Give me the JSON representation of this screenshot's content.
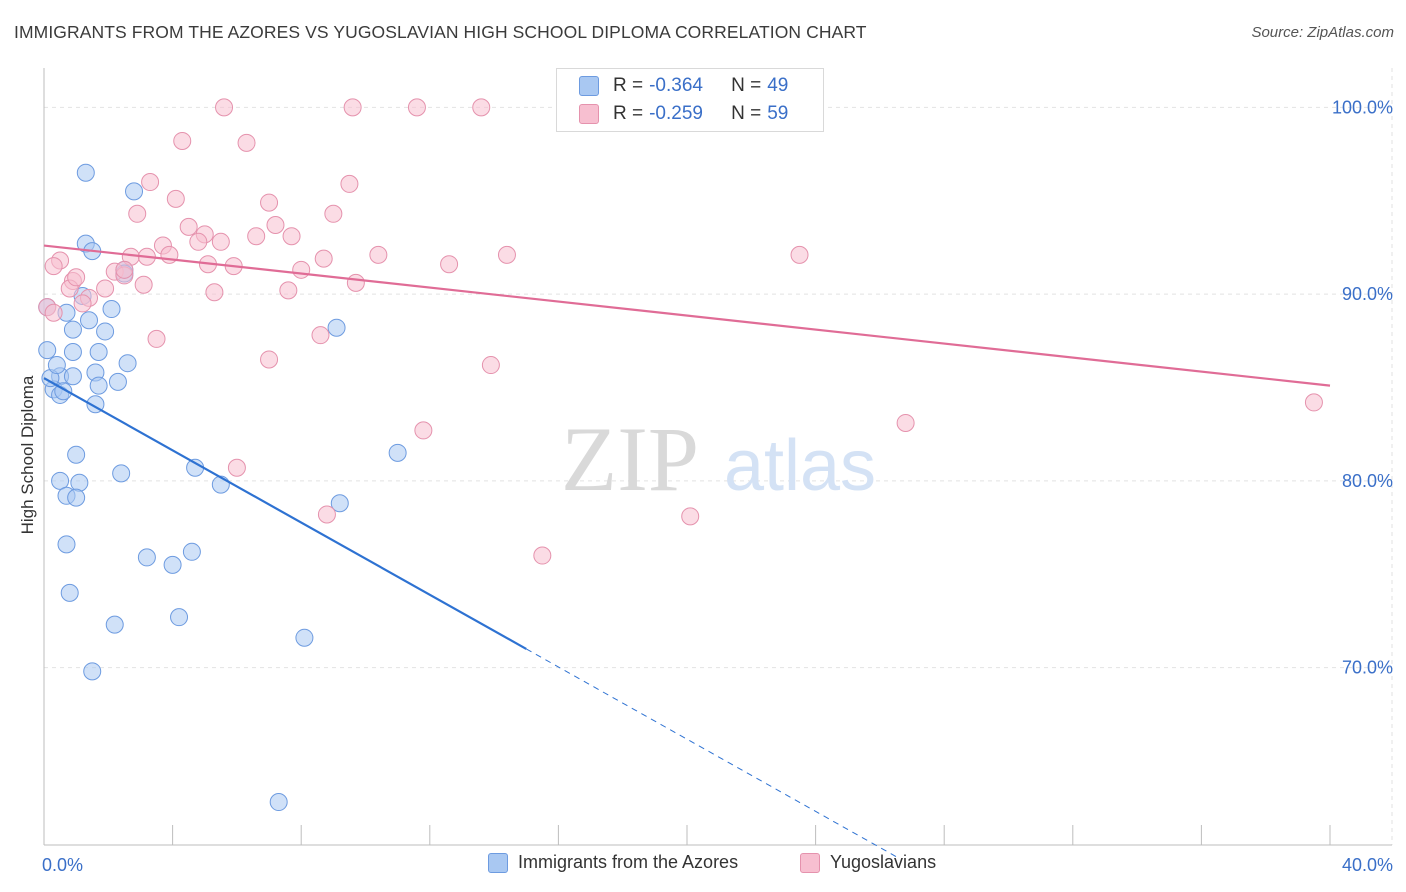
{
  "header": {
    "title": "IMMIGRANTS FROM THE AZORES VS YUGOSLAVIAN HIGH SCHOOL DIPLOMA CORRELATION CHART",
    "source": "Source: ZipAtlas.com"
  },
  "watermark": {
    "zip": "ZIP",
    "atlas": "atlas"
  },
  "legend": {
    "rows": [
      {
        "r_label": "R =",
        "r_value": "-0.364",
        "n_label": "N =",
        "n_value": "49",
        "color": "#a9c8f2",
        "border": "#6d9be0"
      },
      {
        "r_label": "R =",
        "r_value": "-0.259",
        "n_label": "N =",
        "n_value": "59",
        "color": "#f7bfd0",
        "border": "#e592ad"
      }
    ]
  },
  "chart_data": {
    "type": "scatter",
    "title": "IMMIGRANTS FROM THE AZORES VS YUGOSLAVIAN HIGH SCHOOL DIPLOMA CORRELATION CHART",
    "xlabel": "",
    "ylabel": "High School Diploma",
    "xlim": [
      0,
      40
    ],
    "ylim": [
      60.5,
      102.0
    ],
    "x_ticks": [
      0,
      40
    ],
    "x_tick_labels": [
      "0.0%",
      "40.0%"
    ],
    "y_ticks": [
      70,
      80,
      90,
      100
    ],
    "y_tick_labels": [
      "70.0%",
      "80.0%",
      "90.0%",
      "100.0%"
    ],
    "grid": true,
    "legend_position": "top-center",
    "series": [
      {
        "name": "Immigrants from the Azores",
        "color": "#6d9be0",
        "fill": "#a9c8f2",
        "trend": {
          "x0": 0,
          "y0": 85.5,
          "x1": 15.0,
          "y1": 71.0,
          "dashed_to_x": 26.5
        },
        "points": [
          [
            1.3,
            96.5
          ],
          [
            2.8,
            95.5
          ],
          [
            1.3,
            92.7
          ],
          [
            1.5,
            92.3
          ],
          [
            2.5,
            91.3
          ],
          [
            0.1,
            89.3
          ],
          [
            0.7,
            89.0
          ],
          [
            1.4,
            88.6
          ],
          [
            2.1,
            89.2
          ],
          [
            0.9,
            88.1
          ],
          [
            1.9,
            88.0
          ],
          [
            9.1,
            88.2
          ],
          [
            0.1,
            87.0
          ],
          [
            0.9,
            86.9
          ],
          [
            1.7,
            86.9
          ],
          [
            2.6,
            86.3
          ],
          [
            0.5,
            85.6
          ],
          [
            0.9,
            85.6
          ],
          [
            1.6,
            85.8
          ],
          [
            2.3,
            85.3
          ],
          [
            0.3,
            84.9
          ],
          [
            0.5,
            84.6
          ],
          [
            1.7,
            85.1
          ],
          [
            1.6,
            84.1
          ],
          [
            1.0,
            81.4
          ],
          [
            11.0,
            81.5
          ],
          [
            4.7,
            80.7
          ],
          [
            2.4,
            80.4
          ],
          [
            0.5,
            80.0
          ],
          [
            1.1,
            79.9
          ],
          [
            5.5,
            79.8
          ],
          [
            0.7,
            79.2
          ],
          [
            1.0,
            79.1
          ],
          [
            9.2,
            78.8
          ],
          [
            0.7,
            76.6
          ],
          [
            3.2,
            75.9
          ],
          [
            4.0,
            75.5
          ],
          [
            4.6,
            76.2
          ],
          [
            0.8,
            74.0
          ],
          [
            4.2,
            72.7
          ],
          [
            2.2,
            72.3
          ],
          [
            8.1,
            71.6
          ],
          [
            1.5,
            69.8
          ],
          [
            7.3,
            62.8
          ],
          [
            0.2,
            85.5
          ],
          [
            0.4,
            86.2
          ],
          [
            1.2,
            89.9
          ],
          [
            0.6,
            84.8
          ],
          [
            2.5,
            91.1
          ]
        ]
      },
      {
        "name": "Yugoslavians",
        "color": "#e592ad",
        "fill": "#f7bfd0",
        "trend": {
          "x0": 0,
          "y0": 92.6,
          "x1": 40,
          "y1": 85.1
        },
        "points": [
          [
            5.6,
            100.0
          ],
          [
            9.6,
            100.0
          ],
          [
            11.6,
            100.0
          ],
          [
            13.6,
            100.0
          ],
          [
            4.3,
            98.2
          ],
          [
            6.3,
            98.1
          ],
          [
            3.3,
            96.0
          ],
          [
            9.5,
            95.9
          ],
          [
            4.1,
            95.1
          ],
          [
            7.0,
            94.9
          ],
          [
            2.9,
            94.3
          ],
          [
            9.0,
            94.3
          ],
          [
            4.5,
            93.6
          ],
          [
            7.2,
            93.7
          ],
          [
            5.0,
            93.2
          ],
          [
            6.6,
            93.1
          ],
          [
            7.7,
            93.1
          ],
          [
            3.7,
            92.6
          ],
          [
            4.8,
            92.8
          ],
          [
            5.5,
            92.8
          ],
          [
            3.9,
            92.1
          ],
          [
            2.7,
            92.0
          ],
          [
            0.5,
            91.8
          ],
          [
            8.7,
            91.9
          ],
          [
            10.4,
            92.1
          ],
          [
            14.4,
            92.1
          ],
          [
            23.5,
            92.1
          ],
          [
            0.3,
            91.5
          ],
          [
            5.1,
            91.6
          ],
          [
            5.9,
            91.5
          ],
          [
            12.6,
            91.6
          ],
          [
            2.2,
            91.2
          ],
          [
            8.0,
            91.3
          ],
          [
            2.5,
            91.0
          ],
          [
            0.9,
            90.7
          ],
          [
            3.1,
            90.5
          ],
          [
            9.7,
            90.6
          ],
          [
            0.8,
            90.3
          ],
          [
            1.9,
            90.3
          ],
          [
            1.4,
            89.8
          ],
          [
            5.3,
            90.1
          ],
          [
            7.6,
            90.2
          ],
          [
            1.2,
            89.5
          ],
          [
            0.1,
            89.3
          ],
          [
            3.5,
            87.6
          ],
          [
            8.6,
            87.8
          ],
          [
            7.0,
            86.5
          ],
          [
            13.9,
            86.2
          ],
          [
            39.5,
            84.2
          ],
          [
            26.8,
            83.1
          ],
          [
            11.8,
            82.7
          ],
          [
            6.0,
            80.7
          ],
          [
            8.8,
            78.2
          ],
          [
            20.1,
            78.1
          ],
          [
            15.5,
            76.0
          ],
          [
            2.5,
            91.3
          ],
          [
            0.3,
            89.0
          ],
          [
            1.0,
            90.9
          ],
          [
            3.2,
            92.0
          ]
        ]
      }
    ]
  },
  "bottom_legend": {
    "items": [
      {
        "label": "Immigrants from the Azores",
        "color": "#a9c8f2",
        "border": "#6d9be0"
      },
      {
        "label": "Yugoslavians",
        "color": "#f7bfd0",
        "border": "#e592ad"
      }
    ]
  }
}
